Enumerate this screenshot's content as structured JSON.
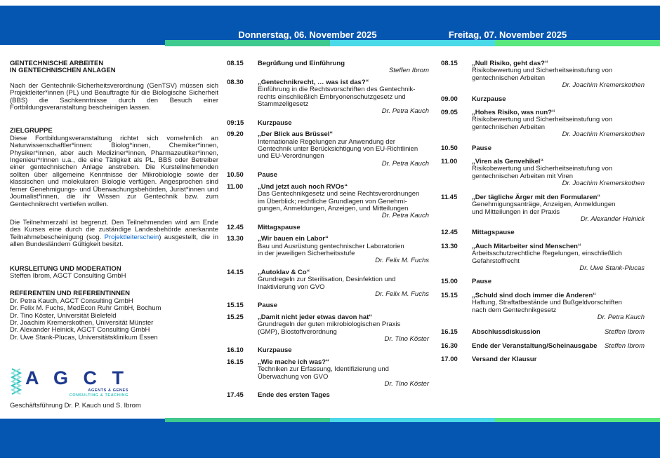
{
  "header": {
    "day1": "Donnerstag, 06. November 2025",
    "day2": "Freitag, 07. November 2025"
  },
  "colors": {
    "bar_blue": "#0556b0",
    "strip_green": "#3ec98f",
    "strip_cyan": "#49d9e8",
    "strip_lightgreen": "#58e87d",
    "logo_navy": "#1d3a8f",
    "logo_teal": "#35c4bf",
    "link_blue": "#0767d2"
  },
  "left": {
    "title_line1": "GENTECHNISCHE ARBEITEN",
    "title_line2": "IN GENTECHNISCHEN ANLAGEN",
    "intro": "Nach der Gentechnik-Sicherheitsverordnung (GenTSV) müssen sich Projektleiter*innen (PL) und Beauftragte für die Biologische Sicherheit (BBS) die Sachkenntnisse durch den Besuch einer Fortbildungsveranstaltung bescheinigen lassen.",
    "zielgruppe_heading": "ZIELGRUPPE",
    "zielgruppe_text": "Diese Fortbildungsveranstaltung richtet sich vornehmlich an Naturwissenschaftler*innen: Biolog*innen, Chemiker*innen, Physiker*innen, aber auch Mediziner*innen, Pharmazeutiker*innen, Ingenieur*rinnen u.a., die eine Tätigkeit als PL, BBS oder Betreiber einer gentechnischen Anlage anstreben. Die Kursteilnehmenden sollten über allgemeine Kenntnisse der Mikrobiologie sowie der klassischen und molekularen Biologie verfügen. Angesprochen sind ferner Genehmigungs- und Überwachungsbehörden, Jurist*innen und Journalist*innen, die ihr Wissen zur Gentechnik bzw. zum Gentechnikrecht vertiefen wollen.",
    "teilnehmer_before": "Die Teilnehmerzahl ist begrenzt. Den Teilnehmenden wird am Ende des Kurses eine durch die zuständige Landesbehörde anerkannte Teilnahmebescheinigung (sog. ",
    "teilnehmer_link": "Projektleiterschein",
    "teilnehmer_after": ") ausgestellt, die in allen Bundesländern Gültigkeit besitzt.",
    "kursleitung_heading": "KURSLEITUNG UND MODERATION",
    "kursleitung_name": "Steffen Ibrom, AGCT Consulting GmbH",
    "referenten_heading": "REFERENTEN UND REFERENTINNEN",
    "referenten": [
      "Dr. Petra Kauch, AGCT Consulting GmbH",
      "Dr. Felix M. Fuchs, MedEcon Ruhr GmbH, Bochum",
      "Dr. Tino Köster, Universität Bielefeld",
      "Dr. Joachim Kremerskothen, Universität Münster",
      "Dr. Alexander Heinick, AGCT Consulting GmbH",
      "Dr. Uwe Stank-Plucas, Universitätsklinikum Essen"
    ],
    "logo": {
      "letters": "A G C T",
      "tagline1": "AGENTS & GENES",
      "tagline2": "CONSULTING & TEACHING"
    },
    "caption": "Geschäftsführung Dr. P. Kauch und S. Ibrom"
  },
  "schedule": {
    "thursday": {
      "items": [
        {
          "time": "08.15",
          "title": "Begrüßung und Einführung",
          "speaker": "Steffen Ibrom"
        },
        {
          "time": "08.30",
          "title": "„Gentechnikrecht, … was ist das?“",
          "desc": "Einführung in die Rechtsvorschriften des Gentechnik-\nrechts einschließlich Embryonenschutzgesetz und\nStammzellgesetz",
          "speaker": "Dr. Petra Kauch"
        },
        {
          "time": "09:15",
          "title": "Kurzpause"
        },
        {
          "time": "09.20",
          "title": "„Der Blick aus Brüssel“",
          "desc": "Internationale Regelungen zur Anwendung der\nGentechnik unter Berücksichtigung von EU-Richtlinien\nund EU-Verordnungen",
          "speaker": "Dr. Petra Kauch"
        },
        {
          "time": "10.50",
          "title": "Pause"
        },
        {
          "time": "11.00",
          "title": "„Und jetzt auch noch RVOs“",
          "desc": "Das Gentechnikgesetz und seine Rechtsverordnungen\nim Überblick; rechtliche Grundlagen von Genehmi-\ngungen, Anmeldungen, Anzeigen, und Mitteilungen",
          "speaker": "Dr. Petra Kauch"
        },
        {
          "time": "12.45",
          "title": "Mittagspause"
        },
        {
          "time": "13.30",
          "title": "„Wir bauen ein Labor“",
          "desc": "Bau und Ausrüstung gentechnischer Laboratorien\nin der jeweiligen Sicherheitsstufe",
          "speaker": "Dr. Felix M. Fuchs"
        },
        {
          "time": "14.15",
          "title": "„Autoklav & Co“",
          "desc": "Grundregeln zur Sterilisation, Desinfektion und\nInaktivierung von GVO",
          "speaker": "Dr. Felix M. Fuchs"
        },
        {
          "time": "15.15",
          "title": "Pause"
        },
        {
          "time": "15.25",
          "title": "„Damit nicht jeder etwas davon hat“",
          "desc": "Grundregeln der guten mikrobiologischen Praxis\n(GMP), Biostoffverordnung",
          "speaker": "Dr. Tino Köster"
        },
        {
          "time": "16.10",
          "title": "Kurzpause"
        },
        {
          "time": "16.15",
          "title": "„Wie mache ich was?“",
          "desc": "Techniken zur Erfassung, Identifizierung und\nÜberwachung von GVO",
          "speaker": "Dr. Tino Köster"
        },
        {
          "time": "17.45",
          "title": "Ende des ersten Tages"
        }
      ]
    },
    "friday": {
      "items": [
        {
          "time": "08.15",
          "title": "„Null Risiko, geht das?“",
          "desc": "Risikobewertung und Sicherheitseinstufung von\ngentechnischen Arbeiten",
          "speaker": "Dr. Joachim Kremerskothen"
        },
        {
          "time": "09.00",
          "title": "Kurzpause"
        },
        {
          "time": "09.05",
          "title": "„Hohes Risiko, was nun?“",
          "desc": "Risikobewertung und Sicherheitseinstufung von\ngentechnischen Arbeiten",
          "speaker": "Dr. Joachim Kremerskothen"
        },
        {
          "time": "10.50",
          "title": "Pause"
        },
        {
          "time": "11.00",
          "title": "„Viren als Genvehikel“",
          "desc": "Risikobewertung und Sicherheitseinstufung von\ngentechnischen Arbeiten mit Viren",
          "speaker": "Dr. Joachim Kremerskothen"
        },
        {
          "time": "11.45",
          "title": "„Der tägliche Ärger mit den Formularen“",
          "desc": "Genehmigungsanträge, Anzeigen, Anmeldungen\nund Mitteilungen in der Praxis",
          "speaker": "Dr. Alexander Heinick"
        },
        {
          "time": "12.45",
          "title": "Mittagspause"
        },
        {
          "time": "13.30",
          "title": "„Auch Mitarbeiter sind Menschen“",
          "desc": "Arbeitsschutzrechtliche Regelungen, einschließlich\nGefahrstoffrecht",
          "speaker": "Dr. Uwe Stank-Plucas"
        },
        {
          "time": "15.00",
          "title": "Pause"
        },
        {
          "time": "15.15",
          "title": "„Schuld sind doch immer die Anderen“",
          "desc": "Haftung, Straftatbestände und Bußgeldvorschriften\nnach dem Gentechnikgesetz",
          "speaker": "Dr. Petra Kauch"
        },
        {
          "time": "16.15",
          "title": "Abschlussdiskussion",
          "speaker": "Steffen Ibrom",
          "speaker_inline": true,
          "extra_gap": true
        },
        {
          "time": "16.30",
          "title": "Ende der Veranstaltung/Scheinausgabe",
          "speaker": "Steffen Ibrom",
          "speaker_inline": true
        },
        {
          "time": "17.00",
          "title": "Versand der Klausur"
        }
      ]
    }
  }
}
